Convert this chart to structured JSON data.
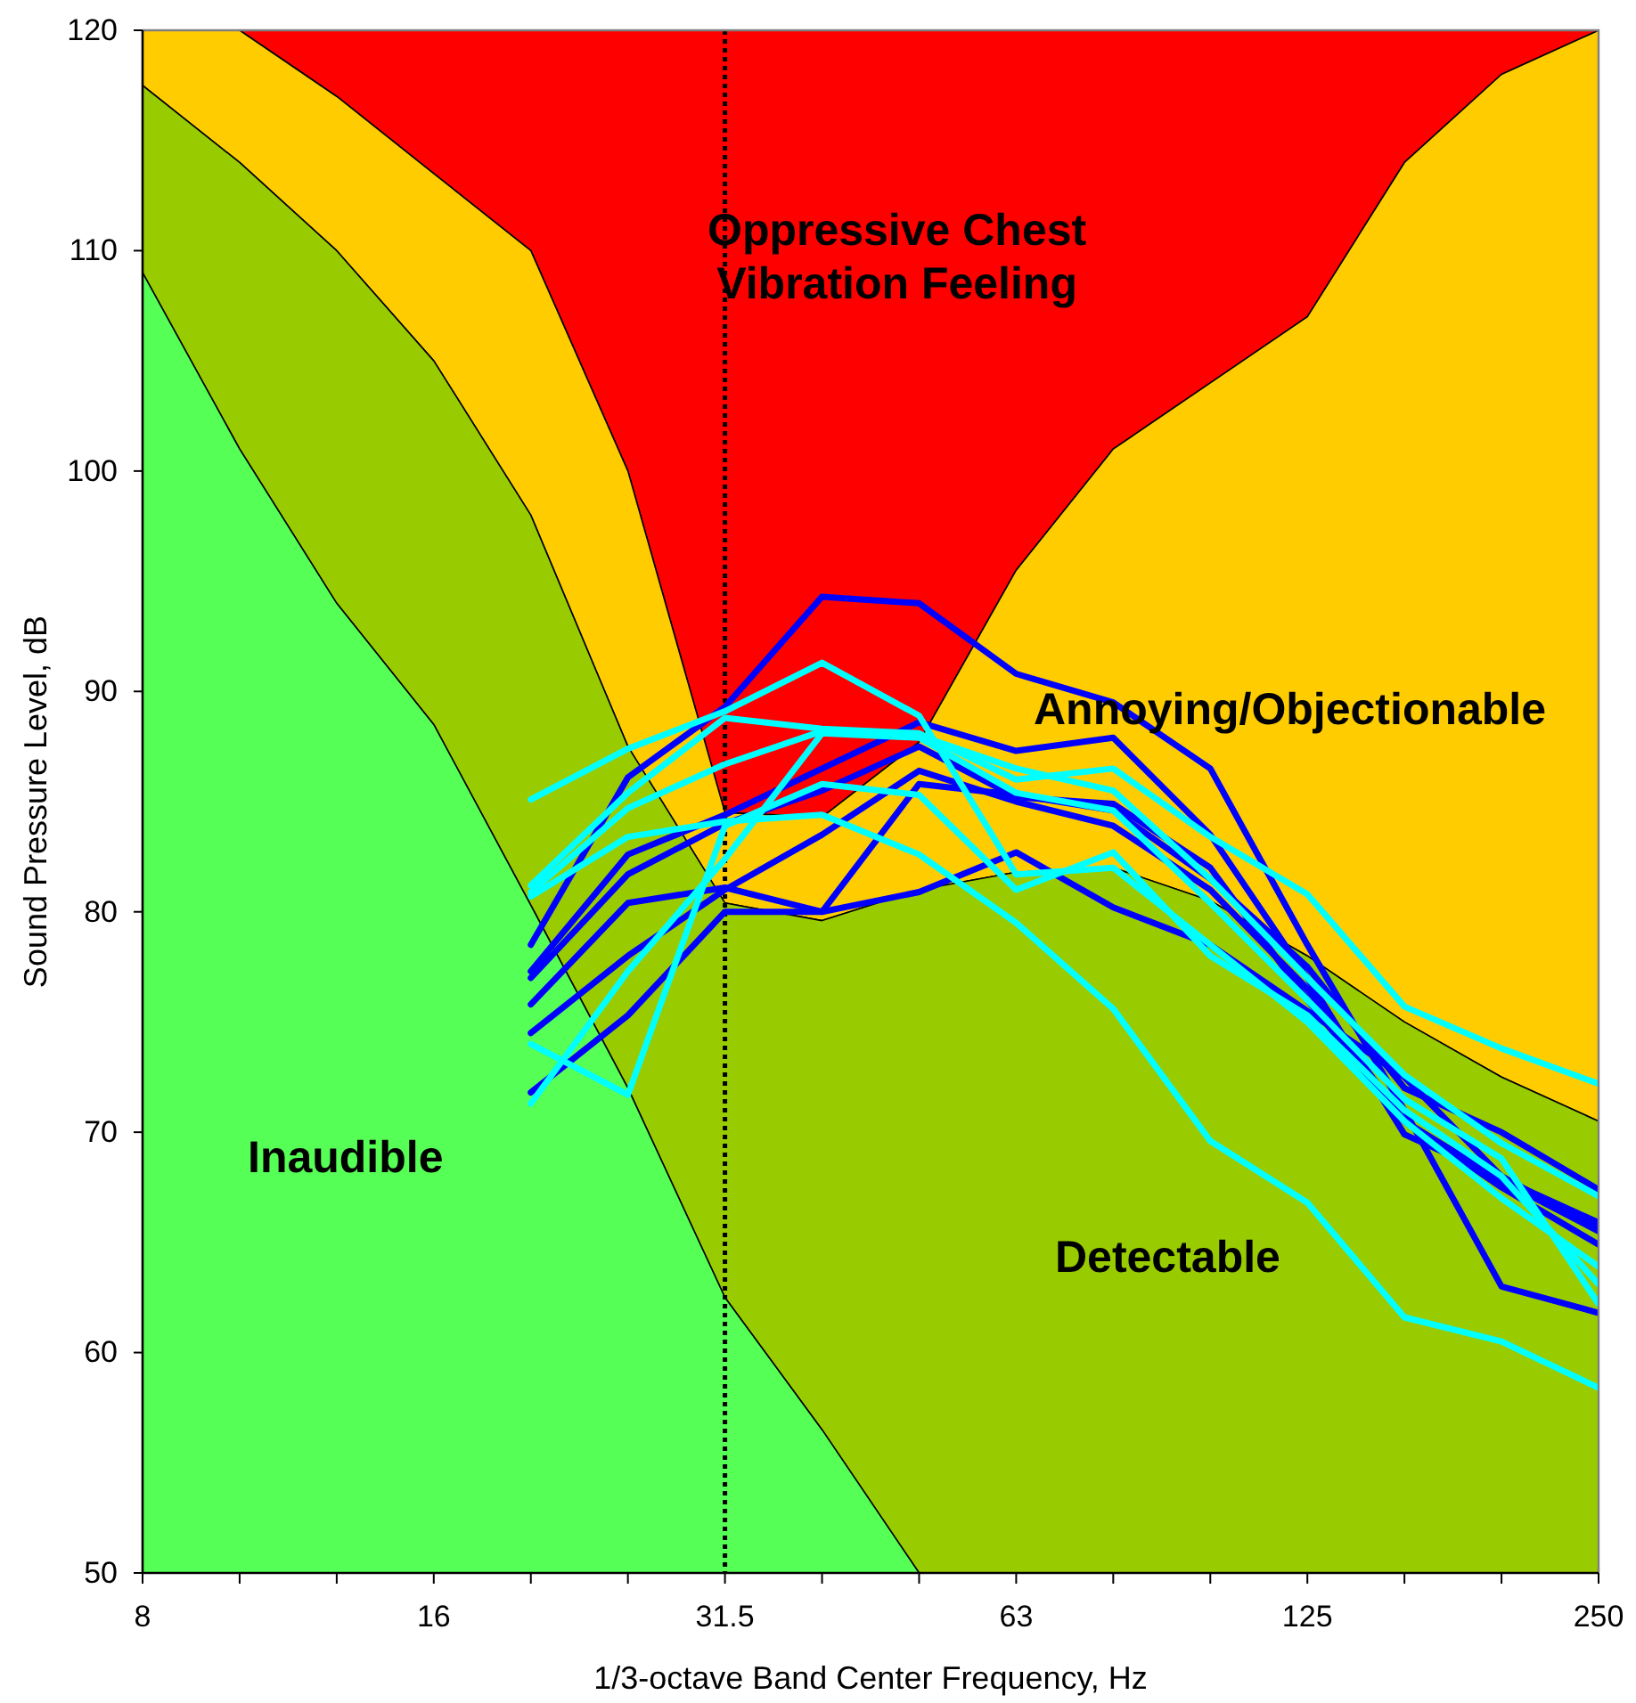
{
  "chart_data": {
    "type": "area",
    "xlabel": "1/3-octave Band Center Frequency, Hz",
    "ylabel": "Sound Pressure Level, dB",
    "categories": [
      "8",
      null,
      null,
      "16",
      null,
      null,
      "31.5",
      null,
      null,
      "63",
      null,
      null,
      "125",
      null,
      null,
      "250"
    ],
    "ylim": [
      50,
      120
    ],
    "yticks": [
      50,
      60,
      70,
      80,
      90,
      100,
      110,
      120
    ],
    "ref_lines": [
      {
        "axis": "x",
        "value": "31.5",
        "color": "#000000",
        "line_style": "dotted"
      }
    ],
    "series": [
      {
        "name": "Oppressive Chest Vibration Feeling",
        "color": "#ff0000",
        "values": [
          120,
          120,
          120,
          120,
          120,
          120,
          120,
          120,
          120,
          120,
          120,
          120,
          120,
          120,
          120,
          120
        ]
      },
      {
        "name": "Annoying/Objectionable",
        "color": "#ffcc00",
        "values": [
          120,
          120,
          117,
          113.5,
          110,
          100,
          84.5,
          84.3,
          87.7,
          95.5,
          101,
          104,
          107,
          114,
          118,
          120
        ]
      },
      {
        "name": "Detectable",
        "color": "#99cc00",
        "values": [
          117.5,
          114,
          110,
          105,
          98,
          87.5,
          80.4,
          79.6,
          81,
          81.8,
          82,
          80.5,
          78,
          75,
          72.5,
          70.5
        ]
      },
      {
        "name": "Inaudible",
        "color": "#55ff55",
        "values": [
          109,
          101,
          94,
          88.5,
          80.3,
          72,
          62.5,
          56.5,
          50,
          null,
          null,
          null,
          null,
          null,
          null,
          null
        ]
      },
      {
        "type": "line",
        "color": "#0000ff",
        "values": [
          null,
          null,
          null,
          null,
          78.5,
          86.1,
          89.3,
          94.3,
          94,
          90.8,
          89.5,
          86.5,
          78.5,
          71,
          63,
          61.8
        ]
      },
      {
        "type": "line",
        "color": "#0000ff",
        "values": [
          null,
          null,
          null,
          null,
          77.3,
          82.6,
          84.4,
          86.5,
          88.6,
          87.3,
          87.9,
          83.5,
          77,
          69.9,
          67.9,
          65.9
        ]
      },
      {
        "type": "line",
        "color": "#0000ff",
        "values": [
          null,
          null,
          null,
          null,
          77,
          81.7,
          84,
          85.5,
          87.5,
          85.2,
          84.9,
          82,
          76,
          70.5,
          67.8,
          65.5
        ]
      },
      {
        "type": "line",
        "color": "#0000ff",
        "values": [
          null,
          null,
          null,
          null,
          75.8,
          80.4,
          81.1,
          80,
          85.8,
          85.3,
          84.6,
          81.5,
          77.5,
          72,
          70,
          67.4
        ]
      },
      {
        "type": "line",
        "color": "#0000ff",
        "values": [
          null,
          null,
          null,
          null,
          74.5,
          78,
          81,
          83.5,
          86.4,
          85,
          83.9,
          81,
          76.5,
          70.5,
          67.5,
          64.9
        ]
      },
      {
        "type": "line",
        "color": "#0000ff",
        "values": [
          null,
          null,
          null,
          null,
          71.8,
          75.3,
          80,
          80,
          80.9,
          82.7,
          80.2,
          78.5,
          75.5,
          72.5,
          68,
          65.6
        ]
      },
      {
        "type": "line",
        "color": "#00ffff",
        "values": [
          null,
          null,
          null,
          null,
          85.1,
          87.4,
          89.1,
          91.3,
          88.9,
          81.7,
          82,
          78.5,
          75,
          70.5,
          67,
          63.9
        ]
      },
      {
        "type": "line",
        "color": "#00ffff",
        "values": [
          null,
          null,
          null,
          null,
          81.2,
          85.4,
          88.8,
          88.3,
          88.1,
          86,
          86.5,
          83.4,
          80.8,
          75.7,
          73.8,
          72.2
        ]
      },
      {
        "type": "line",
        "color": "#00ffff",
        "values": [
          null,
          null,
          null,
          null,
          80.7,
          83.4,
          84.1,
          84.4,
          82.6,
          79.5,
          75.6,
          69.6,
          66.8,
          61.6,
          60.5,
          58.4
        ]
      },
      {
        "type": "line",
        "color": "#00ffff",
        "values": [
          null,
          null,
          null,
          null,
          74,
          71.7,
          83.9,
          85.8,
          85.3,
          81,
          82.7,
          78,
          75.3,
          71,
          68,
          63.1
        ]
      },
      {
        "type": "line",
        "color": "#00ffff",
        "values": [
          null,
          null,
          null,
          null,
          71.3,
          77.3,
          82.4,
          88.1,
          87.9,
          85.4,
          84.6,
          80.4,
          76,
          71.5,
          68.8,
          62.2
        ]
      },
      {
        "type": "line",
        "color": "#00ffff",
        "values": [
          null,
          null,
          null,
          null,
          80.9,
          84.7,
          86.7,
          88.2,
          88,
          86.5,
          85.5,
          81.5,
          77,
          72.6,
          69.5,
          67.1
        ]
      }
    ]
  }
}
